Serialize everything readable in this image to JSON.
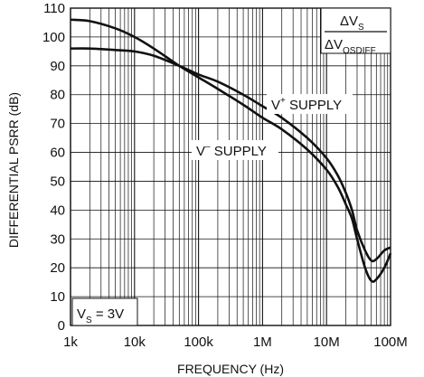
{
  "chart_data": {
    "type": "line",
    "title": "",
    "xlabel": "FREQUENCY (Hz)",
    "ylabel": "DIFFERENTIAL PSRR (dB)",
    "x_scale": "log",
    "xlim": [
      1000,
      100000000
    ],
    "ylim": [
      0,
      110
    ],
    "y_ticks": [
      0,
      10,
      20,
      30,
      40,
      50,
      60,
      70,
      80,
      90,
      100,
      110
    ],
    "x_tick_labels": [
      "1k",
      "10k",
      "100k",
      "1M",
      "10M",
      "100M"
    ],
    "grid": true,
    "series": [
      {
        "name": "V+ SUPPLY",
        "x": [
          1000,
          2000,
          5000,
          10000,
          20000,
          50000,
          100000,
          200000,
          500000,
          1000000,
          2000000,
          5000000,
          10000000,
          15000000,
          20000000,
          25000000,
          30000000,
          40000000,
          50000000,
          60000000,
          80000000,
          100000000
        ],
        "y": [
          96,
          96,
          95.5,
          95,
          93.5,
          90,
          87,
          84.5,
          80,
          76,
          72,
          65,
          58,
          52,
          46,
          40,
          33,
          26,
          22.5,
          23,
          26,
          27
        ]
      },
      {
        "name": "V− SUPPLY",
        "x": [
          1000,
          2000,
          5000,
          10000,
          20000,
          50000,
          100000,
          200000,
          500000,
          1000000,
          2000000,
          5000000,
          10000000,
          15000000,
          20000000,
          25000000,
          30000000,
          40000000,
          50000000,
          60000000,
          80000000,
          100000000
        ],
        "y": [
          106,
          105.5,
          103,
          100,
          96,
          90,
          86,
          82,
          76.5,
          72,
          68,
          61,
          54,
          48,
          42,
          37,
          30,
          20,
          15.5,
          16,
          20,
          25
        ]
      }
    ],
    "annotations": {
      "vplus_label": {
        "base": "V",
        "sup": "+",
        "rest": " SUPPLY"
      },
      "vminus_label": {
        "base": "V",
        "sup": "–",
        "rest": " SUPPLY"
      },
      "vs_label": {
        "base": "V",
        "sub": "S",
        "rest": " = 3V"
      },
      "ratio_numerator": {
        "base": "ΔV",
        "sub": "S"
      },
      "ratio_denominator": {
        "base": "ΔV",
        "sub": "OSDIFF"
      }
    }
  }
}
